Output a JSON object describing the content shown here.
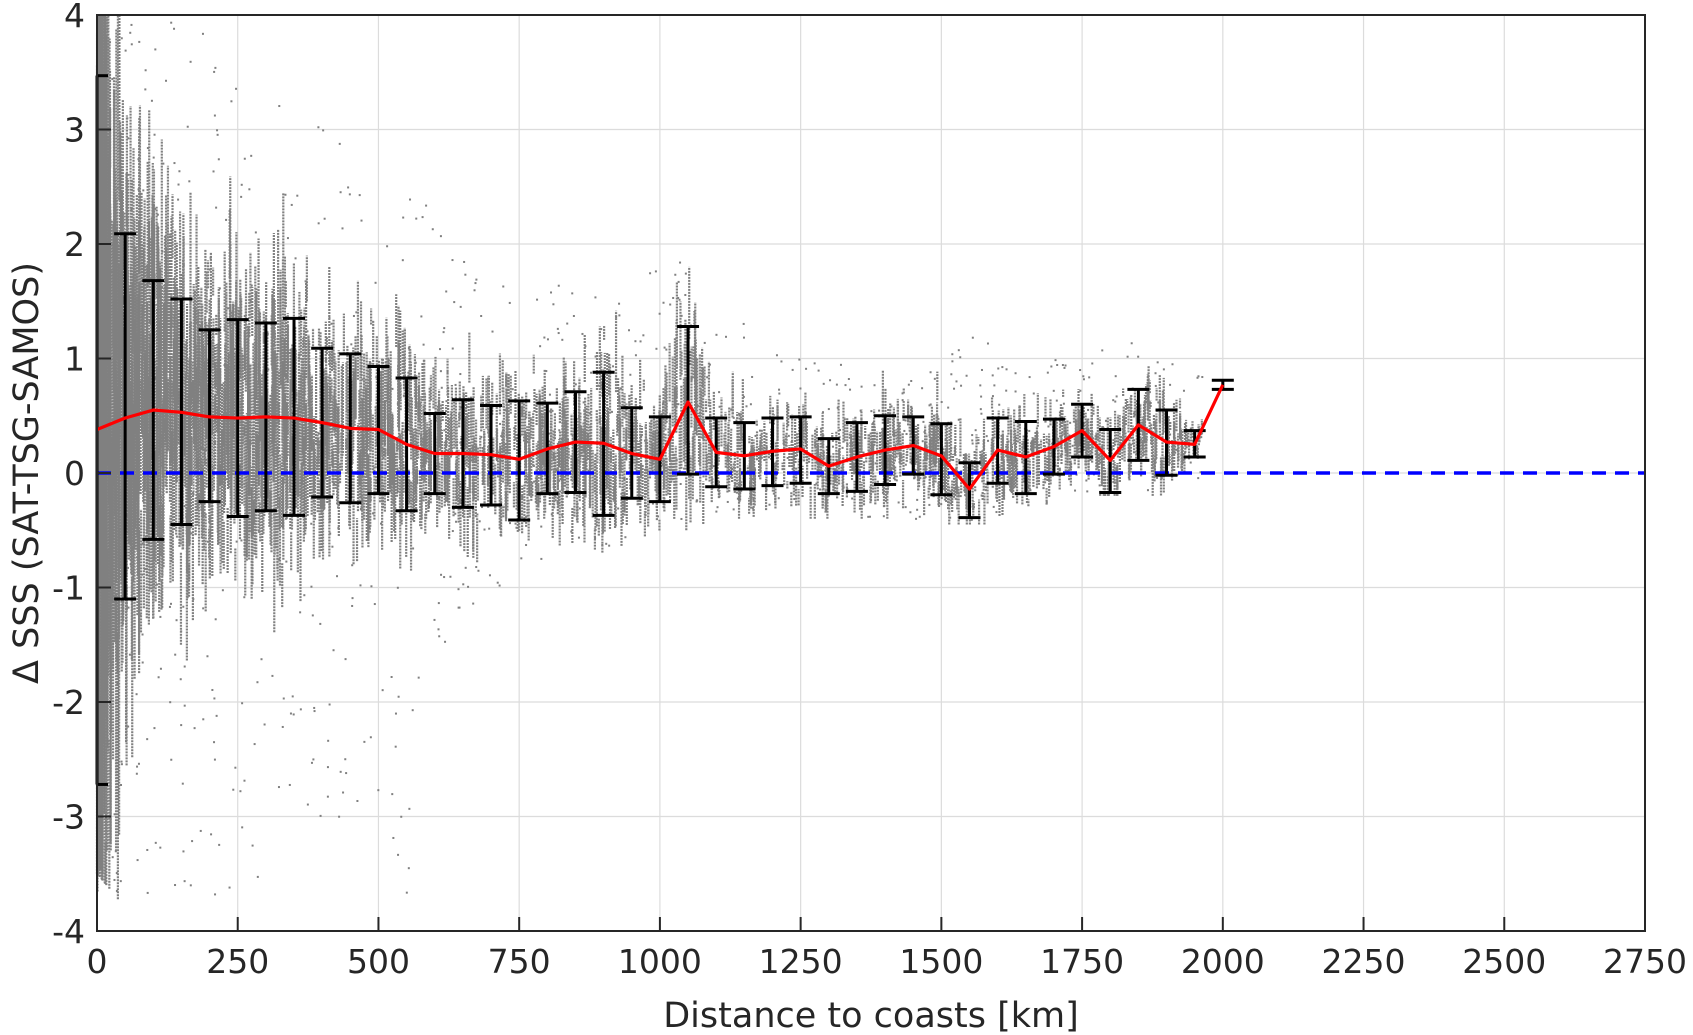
{
  "chart_data": {
    "type": "scatter",
    "xlabel": "Distance to coasts [km]",
    "ylabel": "Δ SSS (SAT-TSG-SAMOS)",
    "xlim": [
      0,
      2750
    ],
    "ylim": [
      -4,
      4
    ],
    "x_ticks": [
      0,
      250,
      500,
      750,
      1000,
      1250,
      1500,
      1750,
      2000,
      2250,
      2500,
      2750
    ],
    "y_ticks": [
      -4,
      -3,
      -2,
      -1,
      0,
      1,
      2,
      3,
      4
    ],
    "x_tick_labels": [
      "0",
      "250",
      "500",
      "750",
      "1000",
      "1250",
      "1500",
      "1750",
      "2000",
      "2250",
      "2500",
      "2750"
    ],
    "y_tick_labels": [
      "-4",
      "-3",
      "-2",
      "-1",
      "0",
      "1",
      "2",
      "3",
      "4"
    ],
    "grid": true,
    "colors": {
      "scatter": "#808080",
      "mean_line": "#ff0000",
      "error_bars": "#000000",
      "zero_line": "#0000ff"
    },
    "zero_reference": {
      "y": 0,
      "style": "dashed"
    },
    "mean": {
      "x": [
        0,
        50,
        100,
        150,
        200,
        250,
        300,
        350,
        400,
        450,
        500,
        550,
        600,
        650,
        700,
        750,
        800,
        850,
        900,
        950,
        1000,
        1050,
        1100,
        1150,
        1200,
        1250,
        1300,
        1350,
        1400,
        1450,
        1500,
        1550,
        1600,
        1650,
        1700,
        1750,
        1800,
        1850,
        1900,
        1950,
        2000
      ],
      "y": [
        0.38,
        0.48,
        0.55,
        0.53,
        0.49,
        0.48,
        0.49,
        0.48,
        0.44,
        0.39,
        0.38,
        0.25,
        0.17,
        0.17,
        0.16,
        0.12,
        0.21,
        0.27,
        0.26,
        0.17,
        0.12,
        0.62,
        0.18,
        0.15,
        0.19,
        0.21,
        0.06,
        0.14,
        0.2,
        0.24,
        0.15,
        -0.14,
        0.2,
        0.14,
        0.23,
        0.37,
        0.11,
        0.42,
        0.27,
        0.25,
        0.77
      ]
    },
    "error_bars": {
      "x": [
        0,
        50,
        100,
        150,
        200,
        250,
        300,
        350,
        400,
        450,
        500,
        550,
        600,
        650,
        700,
        750,
        800,
        850,
        900,
        950,
        1000,
        1050,
        1100,
        1150,
        1200,
        1250,
        1300,
        1350,
        1400,
        1450,
        1500,
        1550,
        1600,
        1650,
        1700,
        1750,
        1800,
        1850,
        1900,
        1950,
        2000
      ],
      "lower": [
        -2.72,
        -1.1,
        -0.58,
        -0.45,
        -0.25,
        -0.38,
        -0.33,
        -0.37,
        -0.21,
        -0.26,
        -0.18,
        -0.33,
        -0.18,
        -0.3,
        -0.28,
        -0.41,
        -0.18,
        -0.17,
        -0.37,
        -0.22,
        -0.25,
        -0.01,
        -0.12,
        -0.14,
        -0.11,
        -0.09,
        -0.18,
        -0.16,
        -0.1,
        -0.01,
        -0.19,
        -0.39,
        -0.09,
        -0.18,
        -0.01,
        0.14,
        -0.17,
        0.11,
        -0.02,
        0.14,
        0.73
      ],
      "upper": [
        3.47,
        2.09,
        1.68,
        1.52,
        1.25,
        1.34,
        1.31,
        1.35,
        1.09,
        1.04,
        0.93,
        0.83,
        0.52,
        0.64,
        0.59,
        0.63,
        0.61,
        0.71,
        0.88,
        0.57,
        0.49,
        1.28,
        0.48,
        0.44,
        0.48,
        0.49,
        0.3,
        0.44,
        0.5,
        0.49,
        0.43,
        0.09,
        0.48,
        0.45,
        0.47,
        0.6,
        0.38,
        0.73,
        0.55,
        0.37,
        0.81
      ]
    },
    "scatter_envelope": {
      "x": [
        0,
        50,
        100,
        150,
        200,
        250,
        300,
        350,
        400,
        450,
        500,
        550,
        600,
        650,
        700,
        750,
        800,
        850,
        900,
        950,
        1000,
        1050,
        1100,
        1150,
        1200,
        1250,
        1300,
        1350,
        1400,
        1450,
        1500,
        1550,
        1600,
        1650,
        1700,
        1750,
        1800,
        1850,
        1900,
        1950
      ],
      "min": [
        -3.5,
        -3.8,
        -3.9,
        -3.7,
        -3.8,
        -3.9,
        -3.7,
        -3.6,
        -3.3,
        -2.9,
        -2.8,
        -3.8,
        -1.6,
        -1.3,
        -1.0,
        -1.2,
        -0.7,
        -0.6,
        -0.7,
        -0.6,
        -0.5,
        -0.5,
        -0.4,
        -0.4,
        -0.4,
        -0.4,
        -0.4,
        -0.4,
        -0.4,
        -0.4,
        -0.45,
        -0.45,
        -0.45,
        -0.45,
        -0.25,
        -0.2,
        -0.2,
        -0.2,
        -0.2,
        -0.1
      ],
      "max": [
        4.0,
        4.0,
        4.0,
        4.0,
        3.9,
        3.6,
        3.4,
        3.2,
        3.0,
        2.9,
        2.8,
        2.5,
        2.4,
        1.9,
        1.7,
        1.6,
        1.6,
        1.7,
        1.8,
        1.9,
        1.9,
        2.0,
        1.4,
        1.3,
        1.2,
        1.0,
        1.0,
        0.9,
        0.9,
        0.9,
        1.0,
        1.2,
        1.2,
        1.2,
        1.0,
        0.9,
        1.2,
        1.3,
        1.0,
        0.9
      ]
    }
  }
}
